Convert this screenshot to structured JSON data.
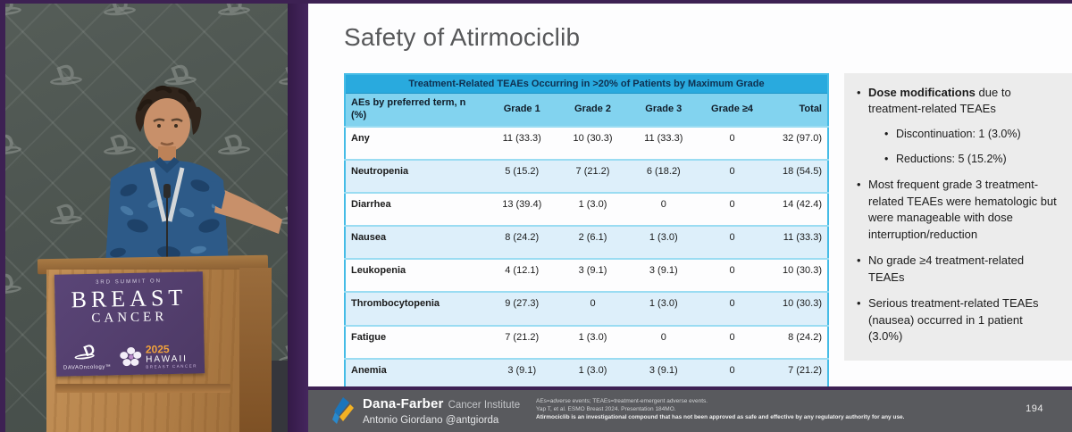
{
  "photo": {
    "description": "speaker-at-podium-photo",
    "wall_icon": "dava-oncology-mark-pattern",
    "sign": {
      "summit_line": "3RD SUMMIT ON",
      "title_line1": "BREAST",
      "title_line2": "CANCER",
      "brand": "DAVAOncology™",
      "year": "2025",
      "location": "HAWAII",
      "location_sub": "BREAST CANCER"
    }
  },
  "slide": {
    "title": "Safety of Atirmociclib",
    "table": {
      "title": "Treatment-Related TEAEs Occurring in >20% of Patients by Maximum Grade",
      "columns": [
        "AEs by preferred term, n (%)",
        "Grade 1",
        "Grade 2",
        "Grade 3",
        "Grade ≥4",
        "Total"
      ],
      "rows": [
        [
          "Any",
          "11 (33.3)",
          "10 (30.3)",
          "11 (33.3)",
          "0",
          "32 (97.0)"
        ],
        [
          "Neutropenia",
          "5 (15.2)",
          "7 (21.2)",
          "6 (18.2)",
          "0",
          "18 (54.5)"
        ],
        [
          "Diarrhea",
          "13 (39.4)",
          "1 (3.0)",
          "0",
          "0",
          "14 (42.4)"
        ],
        [
          "Nausea",
          "8 (24.2)",
          "2 (6.1)",
          "1 (3.0)",
          "0",
          "11 (33.3)"
        ],
        [
          "Leukopenia",
          "4 (12.1)",
          "3 (9.1)",
          "3 (9.1)",
          "0",
          "10 (30.3)"
        ],
        [
          "Thrombocytopenia",
          "9 (27.3)",
          "0",
          "1 (3.0)",
          "0",
          "10 (30.3)"
        ],
        [
          "Fatigue",
          "7 (21.2)",
          "1 (3.0)",
          "0",
          "0",
          "8 (24.2)"
        ],
        [
          "Anemia",
          "3 (9.1)",
          "1 (3.0)",
          "3 (9.1)",
          "0",
          "7 (21.2)"
        ]
      ]
    },
    "bullets": {
      "b1_bold": "Dose modifications",
      "b1_rest": " due to treatment-related TEAEs",
      "b1_sub1": "Discontinuation: 1 (3.0%)",
      "b1_sub2": "Reductions: 5 (15.2%)",
      "b2": "Most frequent grade 3 treatment-related TEAEs were hematologic but were manageable with dose interruption/reduction",
      "b3": "No grade ≥4 treatment-related TEAEs",
      "b4": "Serious treatment-related TEAEs (nausea) occurred in 1 patient (3.0%)"
    }
  },
  "footer": {
    "org_name": "Dana-Farber",
    "org_suffix": "Cancer Institute",
    "presenter": "Antonio Giordano @antgiorda",
    "footnote_line1": "AEs=adverse events; TEAEs=treatment-emergent adverse events.",
    "footnote_line2": "Yap T, et al. ESMO Breast 2024. Presentation 184MO.",
    "footnote_line3": "Atirmociclib is an investigational compound that has not been approved as safe and effective by any regulatory authority for any use.",
    "page_number": "194"
  },
  "colors": {
    "frame_purple": "#3d2153",
    "table_header_cyan": "#29aade",
    "table_subheader_cyan": "#82d3ef",
    "table_row_alt": "#ddeffa",
    "panel_gray": "#ececec",
    "footer_gray": "#595a5e",
    "sign_purple": "#4d3965",
    "hawaii_orange": "#f0a13c",
    "dana_farber_blue": "#1b75bb",
    "dana_farber_yellow": "#f4b223"
  }
}
